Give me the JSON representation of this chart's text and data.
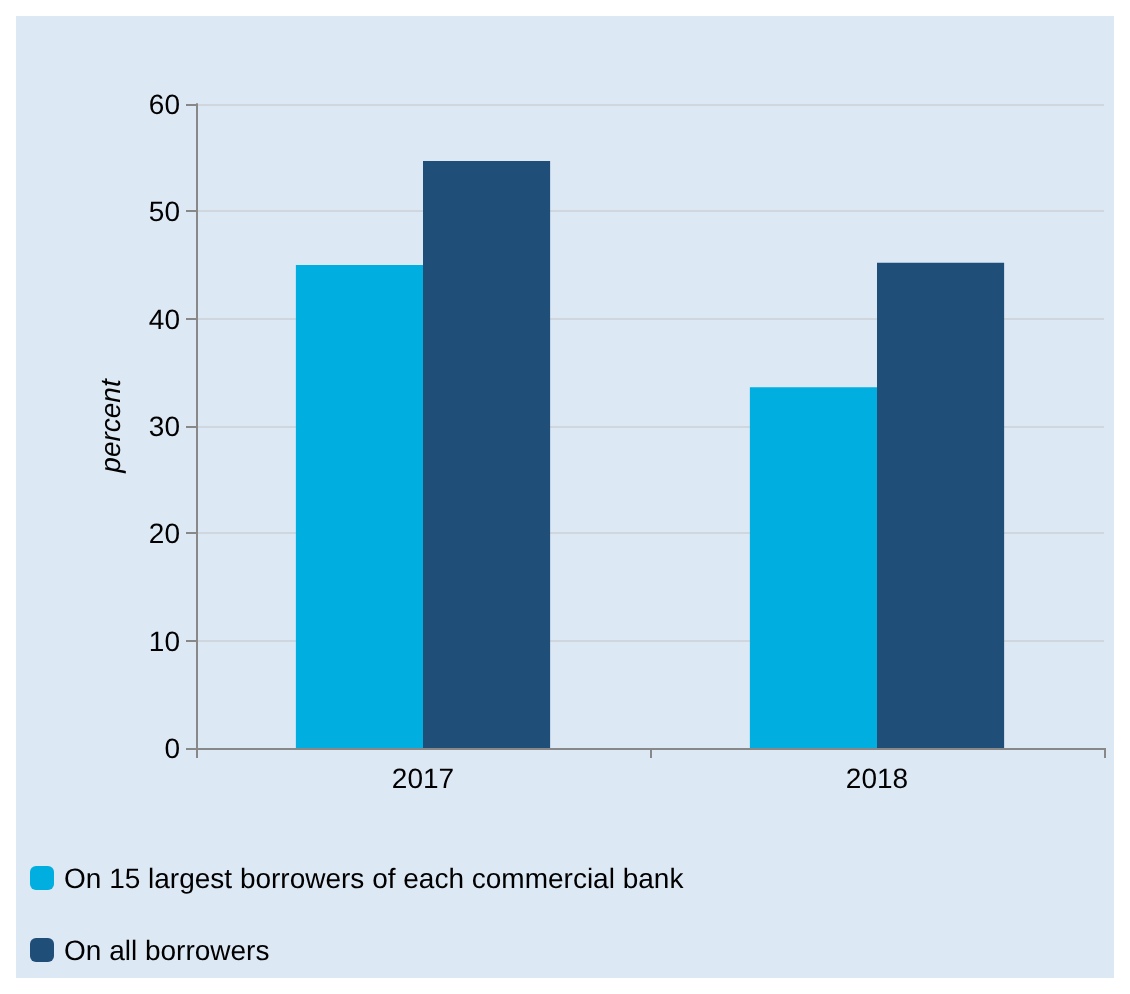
{
  "chart_data": {
    "type": "bar",
    "ylabel": "percent",
    "categories": [
      "2017",
      "2018"
    ],
    "series": [
      {
        "name": "On 15 largest borrowers of each commercial bank",
        "color": "#00aee0",
        "values": [
          45.0,
          33.6
        ]
      },
      {
        "name": "On all borrowers",
        "color": "#1f4e79",
        "values": [
          54.7,
          45.2
        ]
      }
    ],
    "ylim": [
      0,
      60
    ],
    "yticks": [
      0,
      10,
      20,
      30,
      40,
      50,
      60
    ],
    "grid": "y",
    "legend": "bottom left"
  }
}
